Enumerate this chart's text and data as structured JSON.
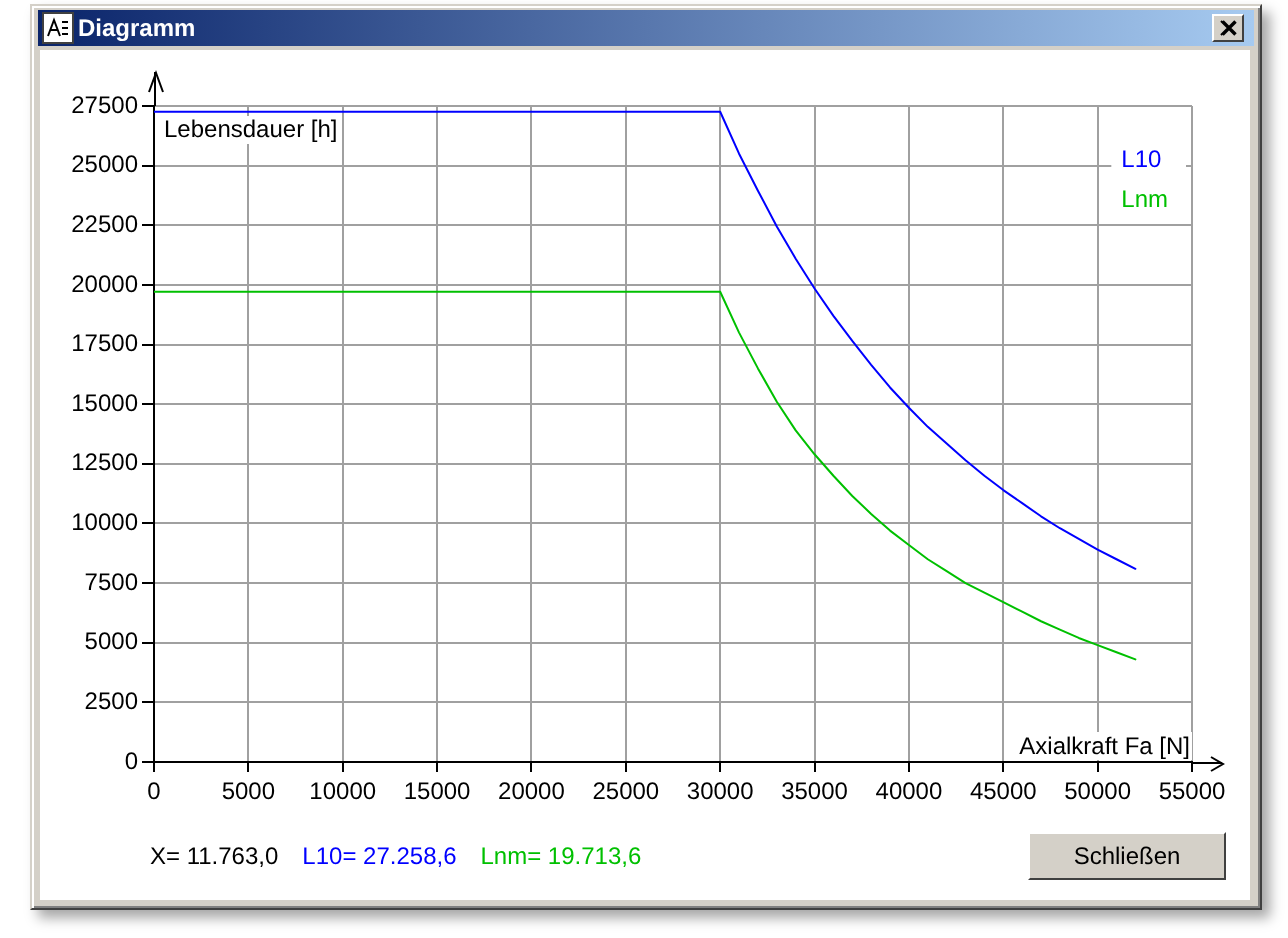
{
  "chart_data": {
    "type": "line",
    "title": "Diagramm",
    "xlabel": "Axialkraft Fa [N]",
    "ylabel": "Lebensdauer [h]",
    "x": [
      0,
      30000,
      31000,
      32000,
      33000,
      34000,
      35000,
      36000,
      37000,
      38000,
      39000,
      40000,
      41000,
      42000,
      43000,
      44000,
      45000,
      46000,
      47000,
      48000,
      49000,
      50000,
      51000,
      52000
    ],
    "series": [
      {
        "name": "L10",
        "color": "#0000ff",
        "values": [
          27258.6,
          27258.6,
          25500,
          23950,
          22450,
          21100,
          19850,
          18700,
          17650,
          16650,
          15700,
          14850,
          14050,
          13350,
          12650,
          12000,
          11400,
          10850,
          10300,
          9800,
          9350,
          8900,
          8500,
          8100
        ]
      },
      {
        "name": "Lnm",
        "color": "#00c000",
        "values": [
          19713.6,
          19713.6,
          18000,
          16500,
          15100,
          13900,
          12900,
          12000,
          11150,
          10400,
          9700,
          9100,
          8500,
          8000,
          7500,
          7100,
          6700,
          6300,
          5900,
          5550,
          5200,
          4900,
          4600,
          4300
        ]
      }
    ],
    "xlim": [
      0,
      55000
    ],
    "xticks": [
      0,
      5000,
      10000,
      15000,
      20000,
      25000,
      30000,
      35000,
      40000,
      45000,
      50000,
      55000
    ],
    "ylim": [
      0,
      27500
    ],
    "yticks": [
      0,
      2500,
      5000,
      7500,
      10000,
      12500,
      15000,
      17500,
      20000,
      22500,
      25000,
      27500
    ],
    "grid": true,
    "legend": "top right",
    "annotations": [
      "X= 11.763,0",
      "L10= 27.258,6",
      "Lnm= 19.713,6",
      "Schließen"
    ]
  }
}
